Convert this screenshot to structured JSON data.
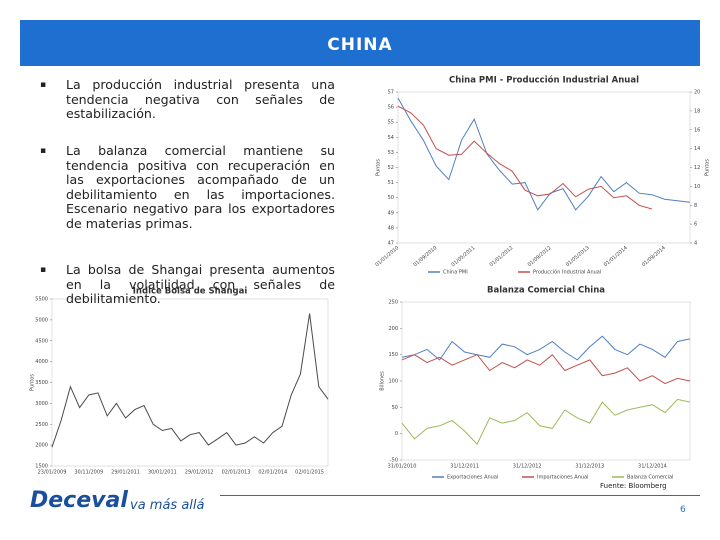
{
  "slide": {
    "title": "CHINA",
    "bullets": [
      "La producción industrial presenta una tendencia negativa con señales de estabilización.",
      "La balanza comercial mantiene su tendencia positiva con recuperación en las exportaciones acompañado de un debilitamiento en las importaciones. Escenario negativo para los exportadores de materias primas.",
      "La bolsa de Shangai presenta aumentos en la volatilidad con señales de debilitamiento."
    ],
    "source": "Fuente: Bloomberg",
    "page": "6",
    "logo": "Deceval",
    "tagline": "va más allá"
  },
  "chart_data": [
    {
      "type": "line",
      "title": "China PMI - Producción Industrial Anual",
      "y_label": "Puntos",
      "y2_label": "Puntos",
      "categories": [
        "01/01/2010",
        null,
        null,
        "01/09/2010",
        null,
        null,
        "01/05/2011",
        null,
        null,
        "01/01/2012",
        null,
        null,
        "01/09/2012",
        null,
        null,
        "01/05/2013",
        null,
        null,
        "01/01/2014",
        null,
        null,
        "01/09/2014",
        null,
        null
      ],
      "ylim": [
        47,
        57
      ],
      "yticks": [
        47,
        48,
        49,
        50,
        51,
        52,
        53,
        54,
        55,
        56,
        57
      ],
      "y2lim": [
        4,
        20
      ],
      "y2ticks": [
        4,
        6,
        8,
        10,
        12,
        14,
        16,
        18,
        20
      ],
      "legend": "bottom",
      "series": [
        {
          "name": "China PMI",
          "color": "#4f7fc0",
          "values": [
            56.6,
            55.1,
            53.8,
            52.1,
            51.2,
            53.8,
            55.2,
            52.9,
            51.8,
            50.9,
            51.0,
            49.2,
            50.3,
            50.6,
            49.2,
            50.1,
            51.4,
            50.4,
            51.0,
            50.3,
            50.2,
            49.9,
            49.8,
            49.7
          ]
        },
        {
          "name": "Producción Industrial Anual",
          "color": "#c0504d",
          "axis": "y2",
          "values": [
            18.5,
            17.8,
            16.5,
            14.0,
            13.3,
            13.4,
            14.8,
            13.5,
            12.4,
            11.6,
            9.6,
            9.0,
            9.2,
            10.3,
            8.9,
            9.7,
            10.0,
            8.8,
            9.0,
            8.0,
            7.6,
            null,
            null,
            null
          ]
        }
      ]
    },
    {
      "type": "line",
      "title": "Balanza Comercial China",
      "y_label": "Billones",
      "categories": [
        "31/01/2010",
        null,
        null,
        null,
        null,
        "31/12/2011",
        null,
        null,
        null,
        null,
        "31/12/2012",
        null,
        null,
        null,
        null,
        "31/12/2013",
        null,
        null,
        null,
        null,
        "31/12/2014",
        null,
        null,
        null
      ],
      "ylim": [
        -50,
        250
      ],
      "yticks": [
        -50,
        0,
        50,
        100,
        150,
        200,
        250
      ],
      "legend": "bottom",
      "series": [
        {
          "name": "Exportaciones Anual",
          "color": "#4f7fc0",
          "values": [
            145,
            150,
            160,
            140,
            175,
            155,
            150,
            145,
            170,
            165,
            150,
            160,
            175,
            155,
            140,
            165,
            185,
            160,
            150,
            170,
            160,
            145,
            175,
            180
          ]
        },
        {
          "name": "Importaciones Anual",
          "color": "#c0504d",
          "values": [
            140,
            150,
            135,
            145,
            130,
            140,
            150,
            120,
            135,
            125,
            140,
            130,
            150,
            120,
            130,
            140,
            110,
            115,
            125,
            100,
            110,
            95,
            105,
            100
          ]
        },
        {
          "name": "Balanza Comercial",
          "color": "#9bbb59",
          "values": [
            20,
            -10,
            10,
            15,
            25,
            5,
            -20,
            30,
            20,
            25,
            40,
            15,
            10,
            45,
            30,
            20,
            60,
            35,
            45,
            50,
            55,
            40,
            65,
            60
          ]
        }
      ]
    },
    {
      "type": "line",
      "title": "Indice Bolsa de Shangai",
      "y_label": "Puntos",
      "categories": [
        "23/01/2009",
        null,
        null,
        null,
        "30/11/2009",
        null,
        null,
        null,
        "29/01/2011",
        null,
        null,
        null,
        "30/01/2011",
        null,
        null,
        null,
        "29/01/2012",
        null,
        null,
        null,
        "02/01/2013",
        null,
        null,
        null,
        "02/01/2014",
        null,
        null,
        null,
        "02/01/2015",
        null,
        null
      ],
      "ylim": [
        1500,
        5500
      ],
      "yticks": [
        1500,
        2000,
        2500,
        3000,
        3500,
        4000,
        4500,
        5000,
        5500
      ],
      "legend": "none",
      "series": [
        {
          "name": "Shangai",
          "color": "#4a4a4a",
          "values": [
            1950,
            2600,
            3400,
            2900,
            3200,
            3250,
            2700,
            3000,
            2650,
            2850,
            2950,
            2500,
            2350,
            2400,
            2100,
            2250,
            2300,
            2000,
            2150,
            2300,
            2000,
            2050,
            2200,
            2050,
            2300,
            2450,
            3200,
            3700,
            5150,
            3400,
            3100
          ]
        }
      ]
    }
  ]
}
